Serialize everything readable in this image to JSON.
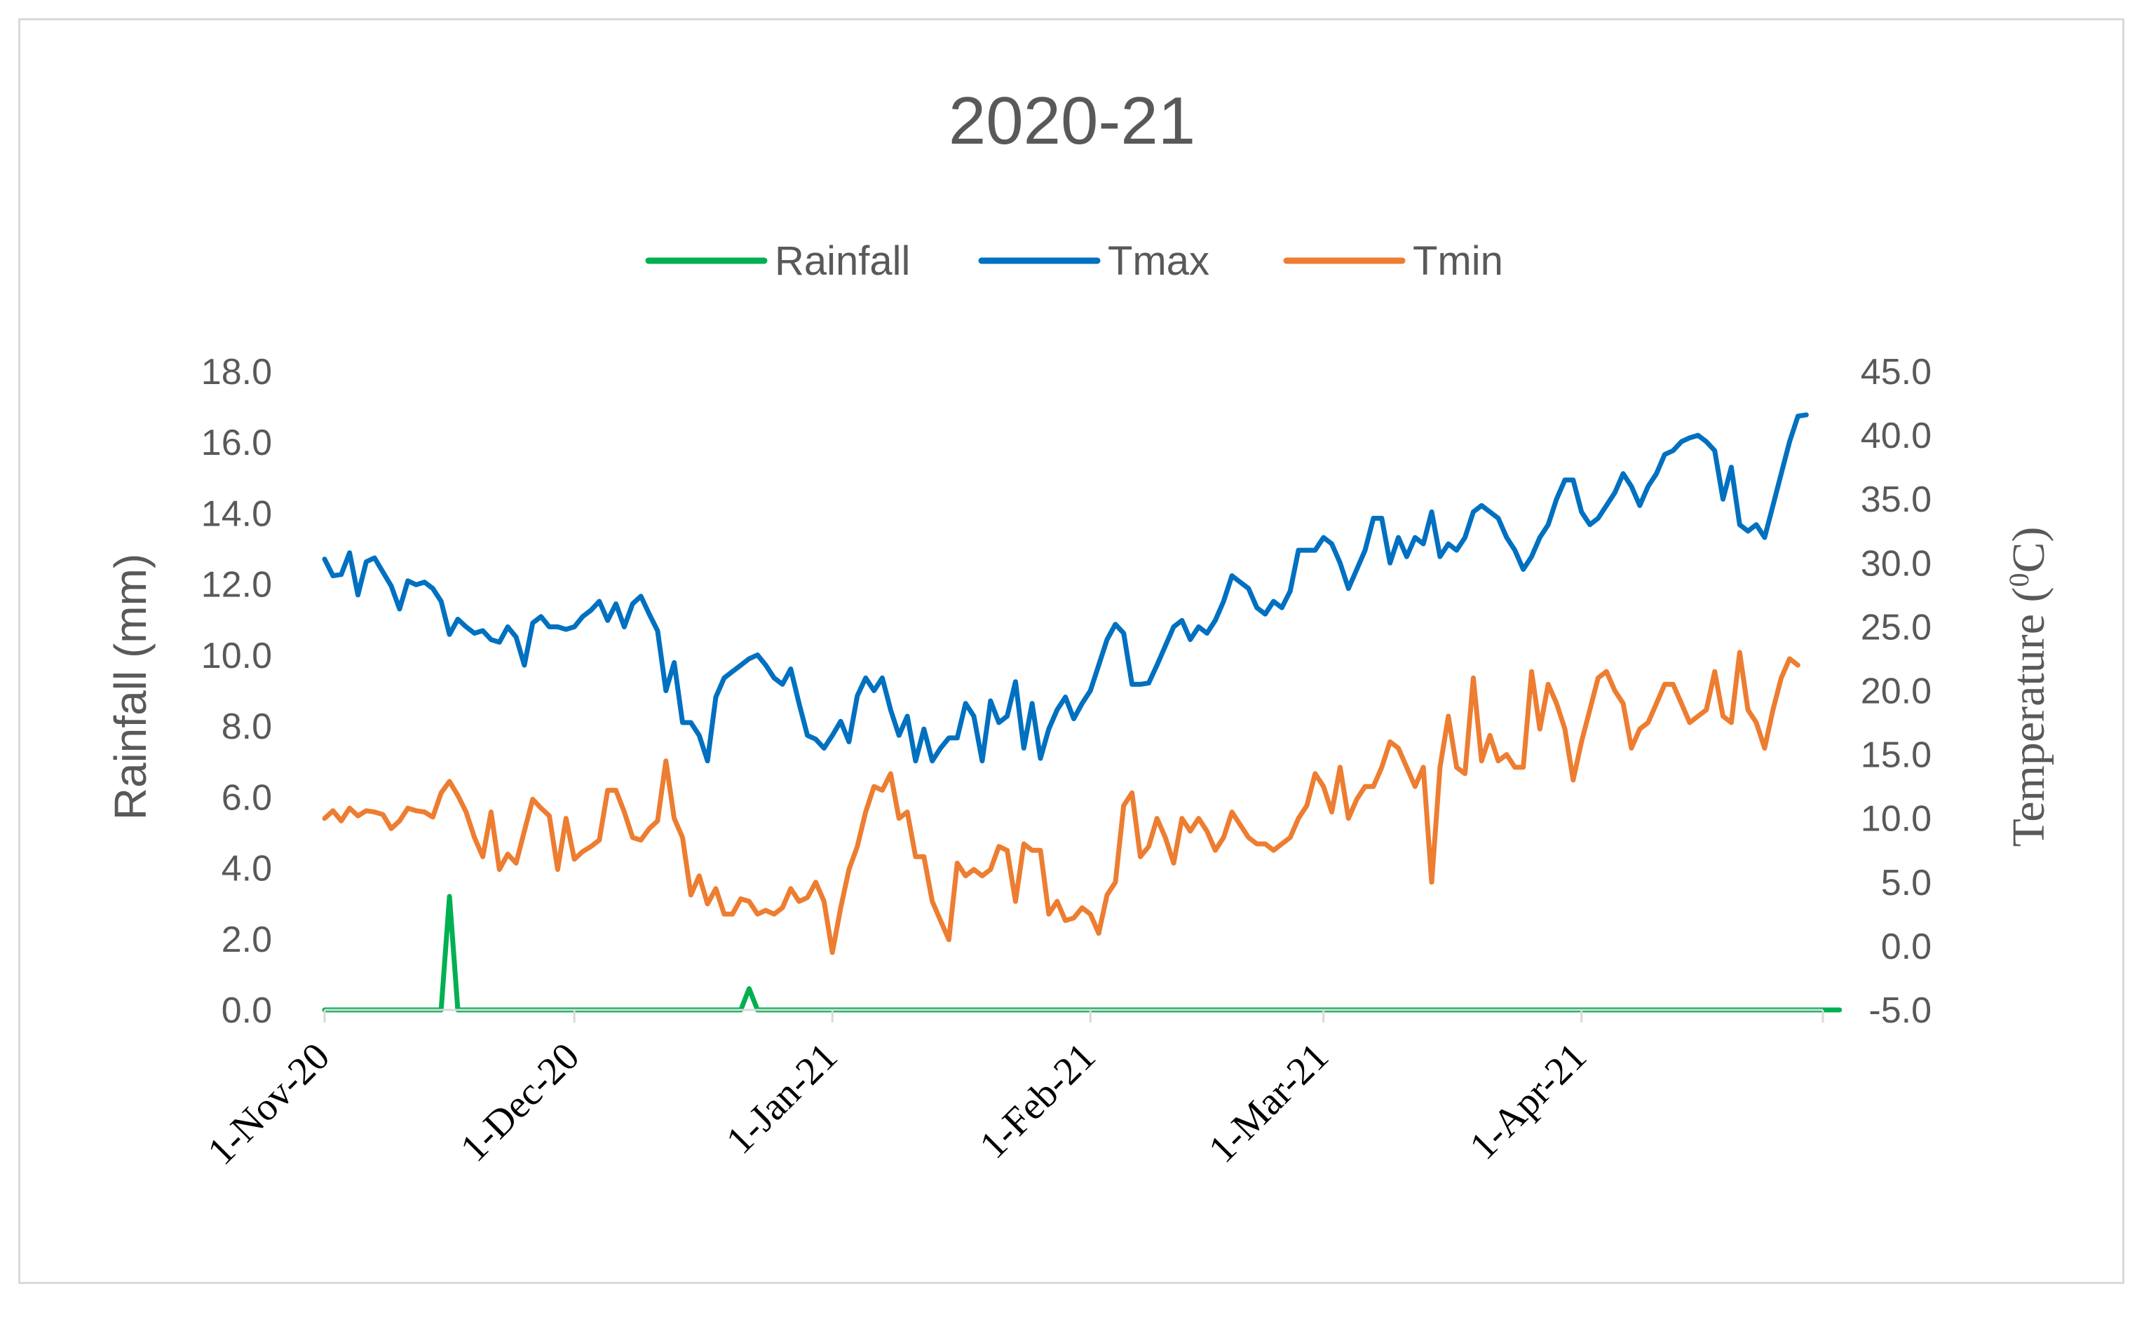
{
  "chart_data": {
    "type": "line",
    "title": "2020-21",
    "ylabel": "Rainfall (mm)",
    "y2label_prefix": "Temperature (",
    "y2label_sup": "0",
    "y2label_suffix": "C)",
    "ylim": [
      0,
      18
    ],
    "y2lim": [
      -5,
      45
    ],
    "yticks": [
      "0.0",
      "2.0",
      "4.0",
      "6.0",
      "8.0",
      "10.0",
      "12.0",
      "14.0",
      "16.0",
      "18.0"
    ],
    "y2ticks": [
      "-5.0",
      "0.0",
      "5.0",
      "10.0",
      "15.0",
      "20.0",
      "25.0",
      "30.0",
      "35.0",
      "40.0",
      "45.0"
    ],
    "x_tick_labels": [
      "1-Nov-20",
      "1-Dec-20",
      "1-Jan-21",
      "1-Feb-21",
      "1-Mar-21",
      "1-Apr-21"
    ],
    "x_tick_days": [
      0,
      30,
      61,
      92,
      120,
      151
    ],
    "x_range_days": [
      0,
      180
    ],
    "grid": false,
    "legend_position": "top-center",
    "series": [
      {
        "name": "Rainfall",
        "axis": "left",
        "color": "#00b050",
        "values": [
          0,
          0,
          0,
          0,
          0,
          0,
          0,
          0,
          0,
          0,
          0,
          0,
          0,
          0,
          0,
          3.2,
          0,
          0,
          0,
          0,
          0,
          0,
          0,
          0,
          0,
          0,
          0,
          0,
          0,
          0,
          0,
          0,
          0,
          0,
          0,
          0,
          0,
          0,
          0,
          0,
          0,
          0,
          0,
          0,
          0,
          0,
          0,
          0,
          0,
          0,
          0,
          0.6,
          0,
          0,
          0,
          0,
          0,
          0,
          0,
          0,
          0,
          0,
          0,
          0,
          0,
          0,
          0,
          0,
          0,
          0,
          0,
          0,
          0,
          0,
          0,
          0,
          0,
          0,
          0,
          0,
          0,
          0,
          0,
          0,
          0,
          0,
          0,
          0,
          0,
          0,
          0,
          0,
          0,
          0,
          0,
          0,
          0,
          0,
          0,
          0,
          0,
          0,
          0,
          0,
          0,
          0,
          0,
          0,
          0,
          0,
          0,
          0,
          0,
          0,
          0,
          0,
          0,
          0,
          0,
          0,
          0,
          0,
          0,
          0,
          0,
          0,
          0,
          0,
          0,
          0,
          0,
          0,
          0,
          0,
          0,
          0,
          0,
          0,
          0,
          0,
          0,
          0,
          0,
          0,
          0,
          0,
          0,
          0,
          0,
          0,
          0,
          0,
          0,
          0,
          0,
          0,
          0,
          0,
          0,
          0,
          0,
          0,
          0,
          0,
          0,
          0,
          0,
          0,
          0,
          0,
          0,
          0,
          0,
          0,
          0,
          0,
          0,
          0,
          0,
          0,
          0,
          0,
          0
        ]
      },
      {
        "name": "Tmax",
        "axis": "right",
        "color": "#0070c0",
        "values": [
          30.3,
          29.0,
          29.1,
          30.8,
          27.5,
          30.1,
          30.4,
          29.3,
          28.2,
          26.4,
          28.6,
          28.3,
          28.5,
          28.0,
          27.0,
          24.4,
          25.6,
          25.0,
          24.5,
          24.7,
          24.0,
          23.8,
          25.0,
          24.2,
          22.0,
          25.3,
          25.8,
          25.0,
          25.0,
          24.8,
          25.0,
          25.8,
          26.3,
          27.0,
          25.5,
          26.8,
          25.0,
          26.8,
          27.4,
          26.0,
          24.7,
          20.0,
          22.2,
          17.5,
          17.5,
          16.5,
          14.5,
          19.5,
          21.0,
          21.5,
          22.0,
          22.5,
          22.8,
          22.0,
          21.0,
          20.5,
          21.7,
          19.0,
          16.5,
          16.2,
          15.5,
          16.5,
          17.6,
          16.0,
          19.6,
          21.0,
          20.0,
          21.0,
          18.5,
          16.5,
          18.0,
          14.5,
          17.0,
          14.5,
          15.5,
          16.3,
          16.3,
          19.0,
          18.0,
          14.5,
          19.2,
          17.5,
          18.0,
          20.7,
          15.5,
          19.0,
          14.7,
          17.0,
          18.5,
          19.5,
          17.8,
          19.0,
          20.0,
          22.0,
          24.0,
          25.2,
          24.5,
          20.5,
          20.5,
          20.6,
          22.0,
          23.5,
          25.0,
          25.5,
          24.0,
          25.0,
          24.5,
          25.5,
          27.0,
          29.0,
          28.5,
          28.0,
          26.5,
          26.0,
          27.0,
          26.5,
          27.8,
          31.0,
          31.0,
          31.0,
          32.0,
          31.5,
          30.0,
          28.0,
          29.5,
          31.0,
          33.5,
          33.5,
          30.0,
          32.0,
          30.5,
          32.0,
          31.5,
          34.0,
          30.5,
          31.5,
          31.0,
          32.0,
          34.0,
          34.5,
          34.0,
          33.5,
          32.0,
          31.0,
          29.5,
          30.5,
          32.0,
          33.0,
          35.0,
          36.5,
          36.5,
          34.0,
          33.0,
          33.5,
          34.5,
          35.5,
          37.0,
          36.0,
          34.5,
          36.0,
          37.0,
          38.5,
          38.8,
          39.5,
          39.8,
          40.0,
          39.5,
          38.8,
          35.0,
          37.5,
          33.0,
          32.5,
          33.0,
          32.0,
          34.5,
          37.0,
          39.5,
          41.5,
          41.6
        ]
      },
      {
        "name": "Tmin",
        "axis": "right",
        "color": "#ed7d31",
        "values": [
          10.0,
          10.6,
          9.8,
          10.8,
          10.2,
          10.6,
          10.5,
          10.3,
          9.2,
          9.8,
          10.8,
          10.6,
          10.5,
          10.1,
          12.0,
          12.9,
          11.8,
          10.5,
          8.5,
          7.0,
          10.5,
          6.0,
          7.2,
          6.5,
          9.0,
          11.5,
          10.8,
          10.2,
          6.0,
          10.0,
          6.8,
          7.4,
          7.8,
          8.3,
          12.2,
          12.2,
          10.5,
          8.5,
          8.3,
          9.2,
          9.8,
          14.5,
          10.0,
          8.5,
          4.0,
          5.5,
          3.3,
          4.5,
          2.5,
          2.5,
          3.7,
          3.5,
          2.5,
          2.8,
          2.5,
          3.0,
          4.5,
          3.5,
          3.8,
          5.0,
          3.5,
          -0.5,
          3.0,
          6.0,
          7.8,
          10.5,
          12.5,
          12.2,
          13.5,
          10.0,
          10.5,
          7.0,
          7.0,
          3.5,
          2.0,
          0.5,
          6.5,
          5.5,
          6.0,
          5.5,
          6.0,
          7.8,
          7.5,
          3.5,
          8.0,
          7.5,
          7.5,
          2.5,
          3.5,
          2.0,
          2.2,
          3.0,
          2.5,
          1.0,
          4.0,
          5.0,
          11.0,
          12.0,
          7.0,
          7.8,
          10.0,
          8.5,
          6.5,
          10.0,
          9.0,
          10.0,
          9.0,
          7.5,
          8.5,
          10.5,
          9.5,
          8.5,
          8.0,
          8.0,
          7.5,
          8.0,
          8.5,
          10.0,
          11.0,
          13.5,
          12.5,
          10.5,
          14.0,
          10.0,
          11.5,
          12.5,
          12.5,
          14.0,
          16.0,
          15.5,
          14.0,
          12.5,
          14.0,
          5.0,
          14.0,
          18.0,
          14.0,
          13.5,
          21.0,
          14.5,
          16.5,
          14.5,
          15.0,
          14.0,
          14.0,
          21.5,
          17.0,
          20.5,
          19.0,
          17.0,
          13.0,
          16.0,
          18.5,
          21.0,
          21.5,
          20.0,
          19.0,
          15.5,
          17.0,
          17.5,
          19.0,
          20.5,
          20.5,
          19.0,
          17.5,
          18.0,
          18.5,
          21.5,
          18.0,
          17.5,
          23.0,
          18.5,
          17.5,
          15.5,
          18.5,
          21.0,
          22.5,
          22.0
        ]
      }
    ]
  }
}
